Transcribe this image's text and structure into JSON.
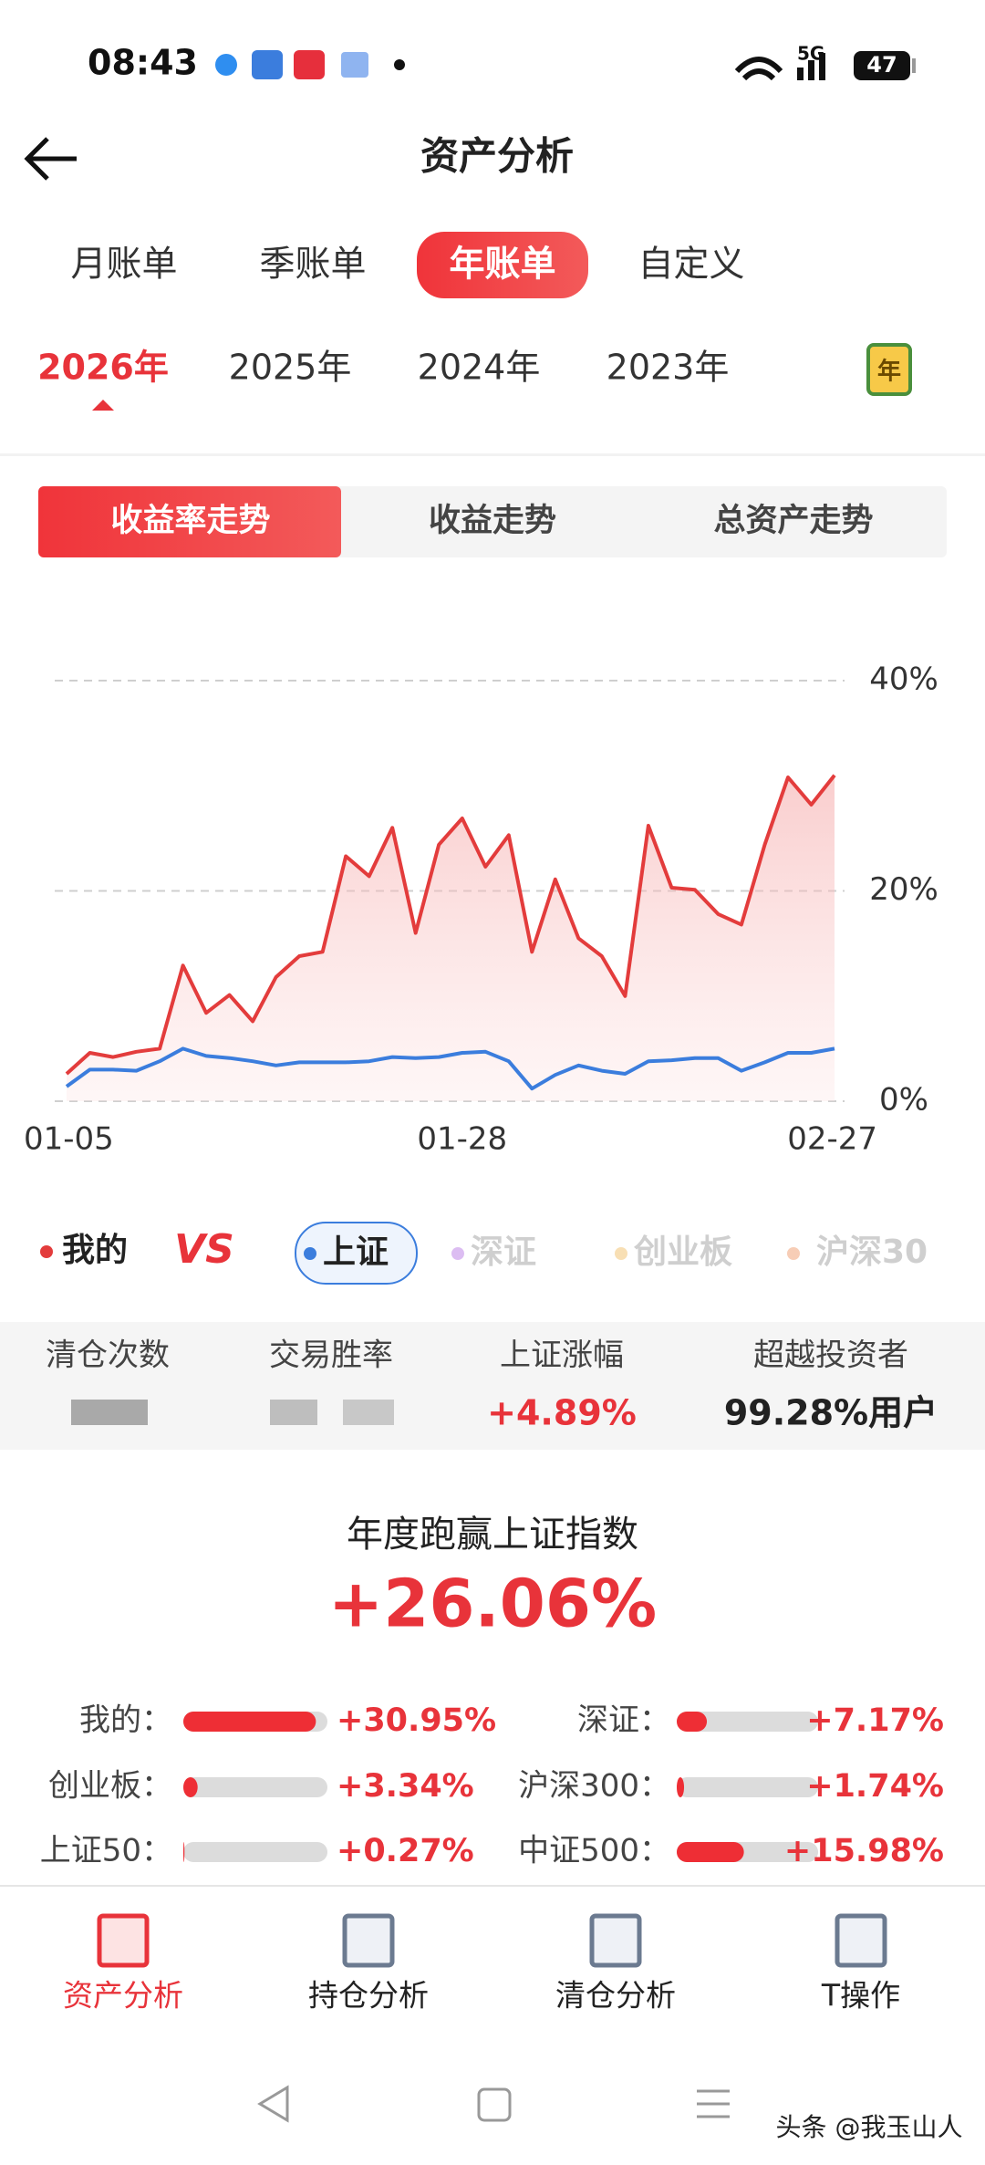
{
  "status_bar": {
    "time": "08:43",
    "network": "5G",
    "battery": "47"
  },
  "header": {
    "title": "资产分析"
  },
  "period_tabs": {
    "items": [
      "月账单",
      "季账单",
      "年账单",
      "自定义"
    ],
    "active": 2
  },
  "year_tabs": {
    "items": [
      "2026年",
      "2025年",
      "2024年",
      "2023年"
    ],
    "active": 0,
    "calendar": "年"
  },
  "chart_tabs": {
    "items": [
      "收益率走势",
      "收益走势",
      "总资产走势"
    ],
    "active": 0
  },
  "chart_data": {
    "type": "line",
    "categories": [
      "01-05",
      null,
      null,
      null,
      null,
      null,
      null,
      null,
      null,
      null,
      null,
      null,
      null,
      null,
      null,
      null,
      null,
      "01-28",
      null,
      null,
      null,
      null,
      null,
      null,
      null,
      null,
      null,
      null,
      null,
      null,
      null,
      null,
      null,
      "02-27"
    ],
    "series": [
      {
        "name": "我的",
        "color": "#e33c3c",
        "values": [
          2.6,
          4.6,
          4.2,
          4.7,
          5.0,
          12.9,
          8.4,
          10.1,
          7.6,
          11.8,
          13.8,
          14.2,
          23.3,
          21.4,
          26.0,
          16.0,
          24.4,
          26.9,
          22.3,
          25.3,
          14.2,
          21.1,
          15.5,
          13.8,
          10.0,
          26.2,
          20.3,
          20.1,
          17.8,
          16.8,
          24.4,
          30.8,
          28.2,
          31.0
        ]
      },
      {
        "name": "上证",
        "color": "#3b7ddd",
        "values": [
          1.4,
          3.0,
          3.0,
          2.9,
          3.8,
          5.0,
          4.3,
          4.1,
          3.8,
          3.4,
          3.7,
          3.7,
          3.7,
          3.8,
          4.2,
          4.1,
          4.2,
          4.6,
          4.7,
          3.8,
          1.2,
          2.5,
          3.4,
          2.9,
          2.6,
          3.8,
          3.9,
          4.1,
          4.1,
          2.9,
          3.7,
          4.6,
          4.6,
          5.0
        ]
      }
    ],
    "ylim": [
      0,
      40
    ],
    "yticks": [
      {
        "value": 0,
        "label": "0%"
      },
      {
        "value": 20,
        "label": "20%"
      },
      {
        "value": 40,
        "label": "40%"
      }
    ],
    "grid": true
  },
  "compare": {
    "mine": "我的",
    "vs": "VS",
    "indices": [
      "上证",
      "深证",
      "创业板",
      "沪深30"
    ],
    "active": 0,
    "colors": [
      "#3b7ddd",
      "#dcbdf2",
      "#f8dfb4",
      "#f7cdb6"
    ]
  },
  "stats": [
    {
      "label": "清仓次数"
    },
    {
      "label": "交易胜率"
    },
    {
      "label": "上证涨幅",
      "value": "+4.89%"
    },
    {
      "label": "超越投资者",
      "value": "99.28%用户"
    }
  ],
  "summary": {
    "title": "年度跑赢上证指数",
    "value": "+26.06%"
  },
  "comparison_bars": [
    {
      "label": "我的：",
      "value": 30.95,
      "value_label": "+30.95%"
    },
    {
      "label": "深证：",
      "value": 7.17,
      "value_label": "+7.17%"
    },
    {
      "label": "创业板：",
      "value": 3.34,
      "value_label": "+3.34%"
    },
    {
      "label": "沪深300：",
      "value": 1.74,
      "value_label": "+1.74%"
    },
    {
      "label": "上证50：",
      "value": 0.27,
      "value_label": "+0.27%"
    },
    {
      "label": "中证500：",
      "value": 15.98,
      "value_label": "+15.98%"
    }
  ],
  "bottom_nav": {
    "items": [
      "资产分析",
      "持仓分析",
      "清仓分析",
      "T操作"
    ],
    "active": 0
  },
  "watermark": "头条 @我玉山人"
}
